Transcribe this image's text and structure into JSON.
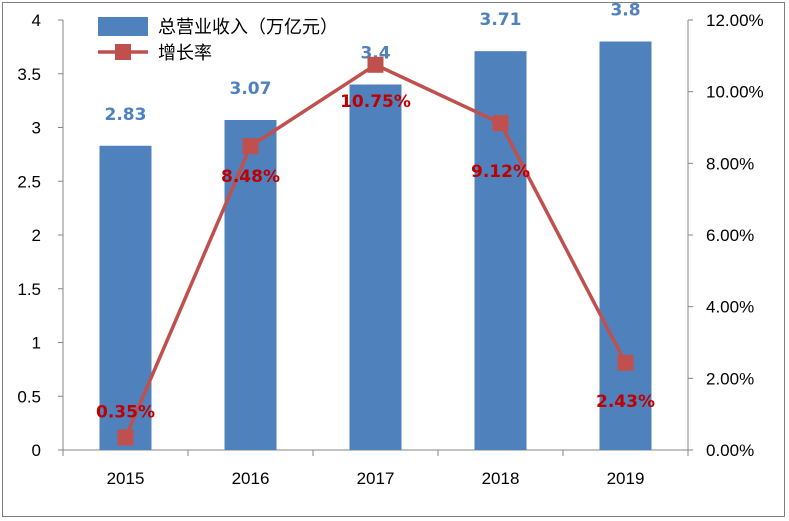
{
  "chart_data": {
    "type": "bar",
    "categories": [
      "2015",
      "2016",
      "2017",
      "2018",
      "2019"
    ],
    "series": [
      {
        "name": "总营业收入（万亿元）",
        "type": "bar",
        "axis": "left",
        "values": [
          2.83,
          3.07,
          3.4,
          3.71,
          3.8
        ],
        "labels": [
          "2.83",
          "3.07",
          "3.4",
          "3.71",
          "3.8"
        ],
        "color": "#4f81bd"
      },
      {
        "name": "增长率",
        "type": "line",
        "axis": "right",
        "values": [
          0.35,
          8.48,
          10.75,
          9.12,
          2.43
        ],
        "labels": [
          "0.35%",
          "8.48%",
          "10.75%",
          "9.12%",
          "2.43%"
        ],
        "color": "#c0504d"
      }
    ],
    "y_left": {
      "ylim": [
        0,
        4
      ],
      "ticks": [
        "0",
        "0.5",
        "1",
        "1.5",
        "2",
        "2.5",
        "3",
        "3.5",
        "4"
      ]
    },
    "y_right": {
      "ylim": [
        0,
        12
      ],
      "ticks": [
        "0.00%",
        "2.00%",
        "4.00%",
        "6.00%",
        "8.00%",
        "10.00%",
        "12.00%"
      ]
    },
    "legend_position": "top-left",
    "grid": false
  }
}
